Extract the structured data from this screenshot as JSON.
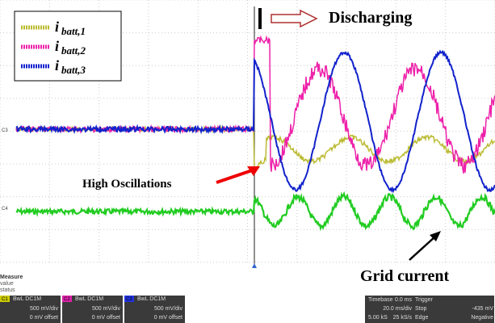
{
  "legend": [
    {
      "symbol": "i",
      "sub": "batt,1"
    },
    {
      "symbol": "i",
      "sub": "batt,2"
    },
    {
      "symbol": "i",
      "sub": "batt,3"
    }
  ],
  "annotations": {
    "discharging": "Discharging",
    "oscillations": "High Oscillations",
    "grid": "Grid current"
  },
  "markers": [
    "C3",
    "C4"
  ],
  "measure": {
    "title": "Measure",
    "lines": [
      "value",
      "status"
    ]
  },
  "channels": [
    {
      "id": "C1",
      "mode": "BwL DC1M",
      "scale": "500 mV/div",
      "offset": "0 mV offset"
    },
    {
      "id": "C2",
      "mode": "BwL DC1M",
      "scale": "500 mV/div",
      "offset": "0 mV offset"
    },
    {
      "id": "C3",
      "mode": "BwL DC1M",
      "scale": "500 mV/div",
      "offset": "0 mV offset"
    }
  ],
  "timebase": {
    "label": "Timebase",
    "delay": "0.0 ms",
    "div": "20.0 ms/div",
    "samples": "5.00 kS",
    "rate": "25 kS/s"
  },
  "trigger": {
    "label": "Trigger",
    "mode": "Stop",
    "level": "-435 mV",
    "type": "Edge",
    "slope": "Negative"
  }
}
